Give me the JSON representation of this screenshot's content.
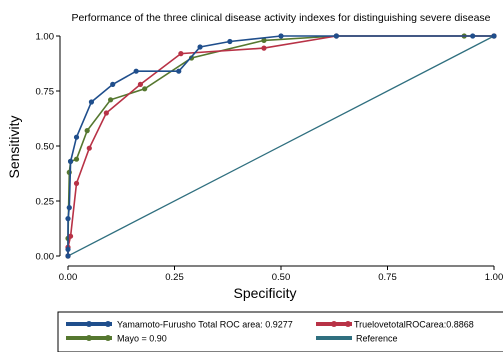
{
  "chart_data": {
    "type": "line",
    "title": "Performance of the three clinical disease activity indexes for distinguishing severe disease",
    "xlabel": "Specificity",
    "ylabel": "Sensitivity",
    "xlim": [
      0,
      1
    ],
    "ylim": [
      0,
      1
    ],
    "xticks": [
      "0.00",
      "0.25",
      "0.50",
      "0.75",
      "1.00"
    ],
    "yticks": [
      "0.00",
      "0.25",
      "0.50",
      "0.75",
      "1.00"
    ],
    "grid": false,
    "legend_position": "bottom",
    "series": [
      {
        "name": "Yamamoto-Furusho Total ROC area: 0.9277",
        "color": "#1f4e8c",
        "x": [
          0.0,
          0.0,
          0.0,
          0.003,
          0.006,
          0.02,
          0.055,
          0.105,
          0.16,
          0.26,
          0.31,
          0.38,
          0.5,
          0.63,
          0.95,
          1.0
        ],
        "y": [
          0.0,
          0.03,
          0.17,
          0.22,
          0.43,
          0.54,
          0.7,
          0.78,
          0.84,
          0.84,
          0.95,
          0.975,
          1.0,
          1.0,
          1.0,
          1.0
        ]
      },
      {
        "name": "TruelovetotalROCarea:0.8868",
        "color": "#b83246",
        "x": [
          0.0,
          0.0,
          0.006,
          0.02,
          0.05,
          0.09,
          0.17,
          0.265,
          0.46,
          0.63,
          1.0
        ],
        "y": [
          0.0,
          0.04,
          0.09,
          0.33,
          0.49,
          0.65,
          0.78,
          0.92,
          0.945,
          1.0,
          1.0
        ]
      },
      {
        "name": "Mayo = 0.90",
        "color": "#55772f",
        "x": [
          0.0,
          0.0,
          0.003,
          0.006,
          0.02,
          0.045,
          0.1,
          0.18,
          0.29,
          0.46,
          0.63,
          0.93,
          1.0
        ],
        "y": [
          0.0,
          0.08,
          0.38,
          0.43,
          0.44,
          0.57,
          0.71,
          0.76,
          0.9,
          0.98,
          1.0,
          1.0,
          1.0
        ]
      },
      {
        "name": "Reference",
        "color": "#2f6f7f",
        "x": [
          0.0,
          1.0
        ],
        "y": [
          0.0,
          1.0
        ]
      }
    ]
  }
}
